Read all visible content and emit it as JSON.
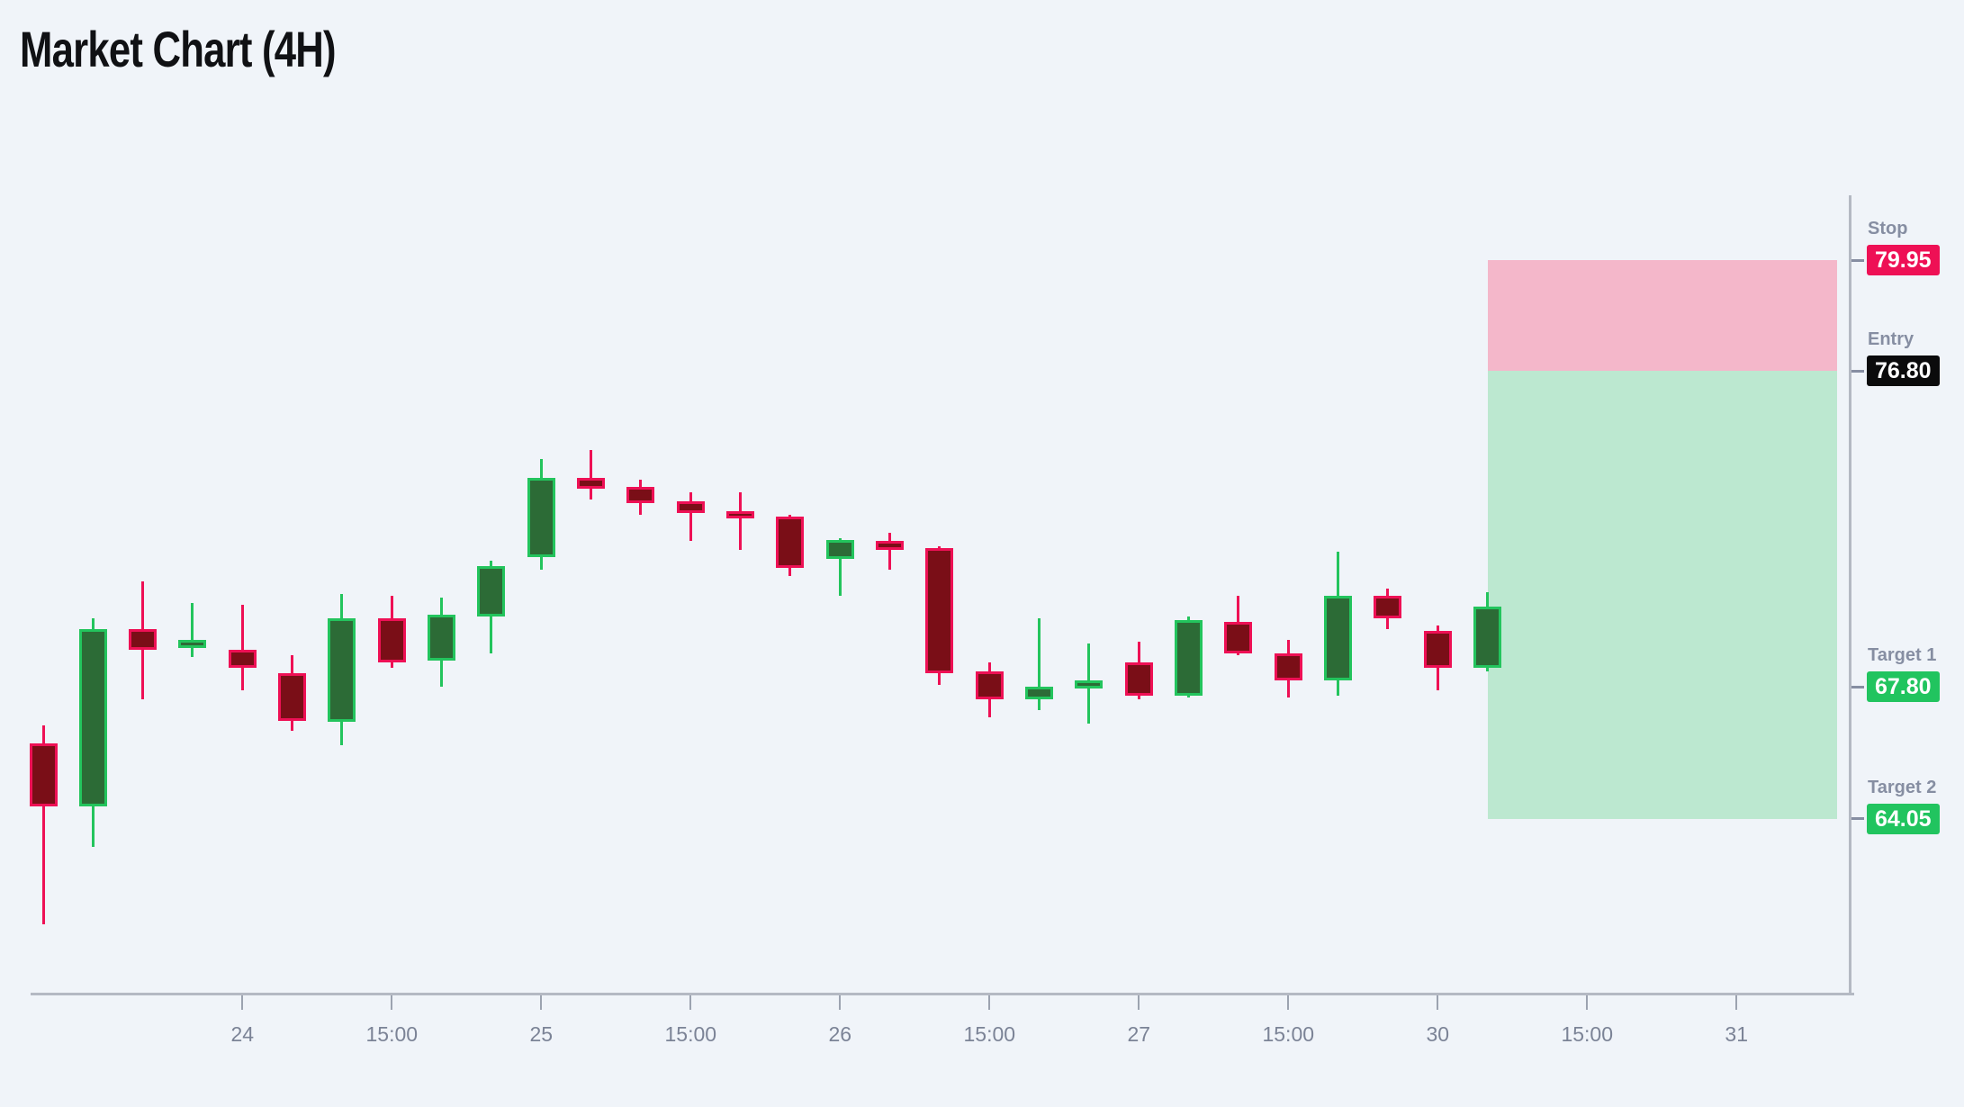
{
  "page": {
    "title": "Market Chart (4H)"
  },
  "colors": {
    "background": "#f0f4f9",
    "title": "#101114",
    "bull_body": "#2c6b36",
    "bull_accent": "#23c45d",
    "bear_body": "#7a0e17",
    "bear_accent": "#ee1055",
    "zone_stop": "#f4b7ca",
    "zone_profit": "#bce8d0",
    "badge_stop_bg": "#ee1055",
    "badge_entry_bg": "#0b0b0c",
    "badge_target_bg": "#21c45f",
    "badge_text": "#ffffff",
    "axis_line": "#b4b9c3",
    "x_tick": "#9ca3b0",
    "x_label": "#7b8396",
    "level_label": "#868ea2"
  },
  "chart_data": {
    "type": "candlestick",
    "title": "Market Chart (4H)",
    "timeframe": "4H",
    "xlabel": "",
    "ylabel": "",
    "grid": false,
    "legend": false,
    "ylim": [
      59.1,
      81.8
    ],
    "x_tick_labels": [
      "24",
      "15:00",
      "25",
      "15:00",
      "26",
      "15:00",
      "27",
      "15:00",
      "30",
      "15:00",
      "31"
    ],
    "x_tick_candle_index": [
      4,
      7,
      10,
      13,
      16,
      19,
      22,
      25,
      28,
      31,
      34
    ],
    "candles": [
      {
        "o": 66.2,
        "h": 66.7,
        "l": 61.05,
        "c": 64.4
      },
      {
        "o": 64.4,
        "h": 69.75,
        "l": 63.25,
        "c": 69.45
      },
      {
        "o": 69.45,
        "h": 70.8,
        "l": 67.45,
        "c": 68.85
      },
      {
        "o": 68.9,
        "h": 70.2,
        "l": 68.65,
        "c": 69.15
      },
      {
        "o": 68.85,
        "h": 70.15,
        "l": 67.7,
        "c": 68.35
      },
      {
        "o": 68.2,
        "h": 68.7,
        "l": 66.55,
        "c": 66.85
      },
      {
        "o": 66.8,
        "h": 70.45,
        "l": 66.15,
        "c": 69.75
      },
      {
        "o": 69.75,
        "h": 70.4,
        "l": 68.35,
        "c": 68.5
      },
      {
        "o": 68.55,
        "h": 70.35,
        "l": 67.8,
        "c": 69.85
      },
      {
        "o": 69.8,
        "h": 71.4,
        "l": 68.75,
        "c": 71.25
      },
      {
        "o": 71.5,
        "h": 74.3,
        "l": 71.15,
        "c": 73.75
      },
      {
        "o": 73.75,
        "h": 74.55,
        "l": 73.15,
        "c": 73.45
      },
      {
        "o": 73.5,
        "h": 73.7,
        "l": 72.7,
        "c": 73.05
      },
      {
        "o": 73.1,
        "h": 73.35,
        "l": 71.95,
        "c": 72.75
      },
      {
        "o": 72.8,
        "h": 73.35,
        "l": 71.7,
        "c": 72.65
      },
      {
        "o": 72.65,
        "h": 72.7,
        "l": 70.95,
        "c": 71.2
      },
      {
        "o": 71.45,
        "h": 72.05,
        "l": 70.4,
        "c": 72.0
      },
      {
        "o": 71.95,
        "h": 72.2,
        "l": 71.15,
        "c": 71.7
      },
      {
        "o": 71.75,
        "h": 71.8,
        "l": 67.85,
        "c": 68.2
      },
      {
        "o": 68.25,
        "h": 68.5,
        "l": 66.95,
        "c": 67.45
      },
      {
        "o": 67.45,
        "h": 69.75,
        "l": 67.15,
        "c": 67.8
      },
      {
        "o": 67.75,
        "h": 69.05,
        "l": 66.75,
        "c": 68.0
      },
      {
        "o": 68.5,
        "h": 69.1,
        "l": 67.45,
        "c": 67.55
      },
      {
        "o": 67.55,
        "h": 69.8,
        "l": 67.5,
        "c": 69.7
      },
      {
        "o": 69.65,
        "h": 70.4,
        "l": 68.7,
        "c": 68.75
      },
      {
        "o": 68.75,
        "h": 69.15,
        "l": 67.5,
        "c": 68.0
      },
      {
        "o": 68.0,
        "h": 71.65,
        "l": 67.55,
        "c": 70.4
      },
      {
        "o": 70.4,
        "h": 70.6,
        "l": 69.45,
        "c": 69.75
      },
      {
        "o": 69.4,
        "h": 69.55,
        "l": 67.7,
        "c": 68.35
      },
      {
        "o": 68.35,
        "h": 70.5,
        "l": 68.25,
        "c": 70.1
      }
    ],
    "levels": [
      {
        "label": "Stop",
        "value": "79.95",
        "price": 79.95,
        "style": "stop"
      },
      {
        "label": "Entry",
        "value": "76.80",
        "price": 76.8,
        "style": "entry"
      },
      {
        "label": "Target 1",
        "value": "67.80",
        "price": 67.8,
        "style": "target"
      },
      {
        "label": "Target 2",
        "value": "64.05",
        "price": 64.05,
        "style": "target"
      }
    ],
    "zones": [
      {
        "name": "stop-zone",
        "from": 79.95,
        "to": 76.8,
        "color_key": "zone_stop"
      },
      {
        "name": "profit-zone",
        "from": 76.8,
        "to": 64.05,
        "color_key": "zone_profit"
      }
    ]
  }
}
